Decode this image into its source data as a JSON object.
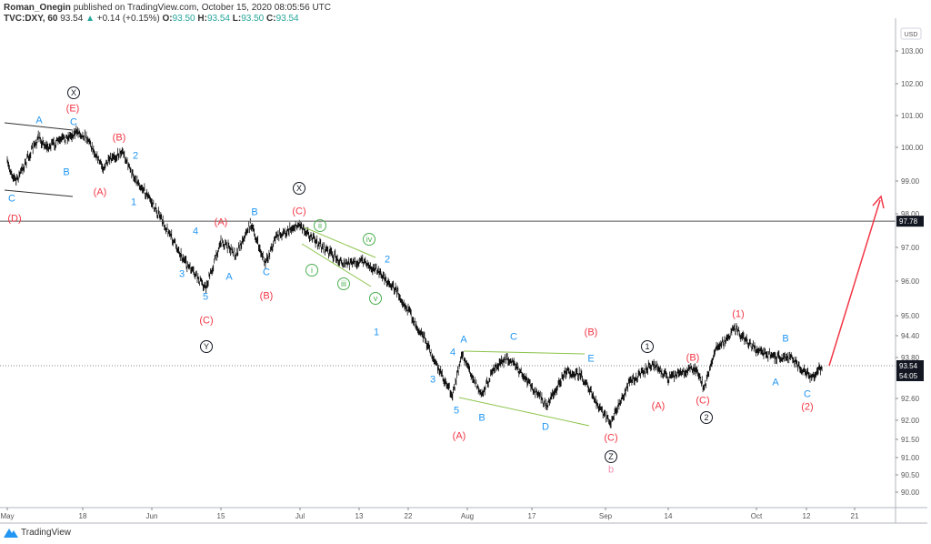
{
  "header": {
    "author": "Roman_Onegin",
    "published": "published on TradingView.com, October 15, 2020 08:05:56 UTC",
    "symbol": "TVC:DXY, 60",
    "last": "93.54",
    "change": "+0.14 (+0.15%)",
    "o_label": "O:",
    "o": "93.50",
    "h_label": "H:",
    "h": "93.54",
    "l_label": "L:",
    "l": "93.50",
    "c_label": "C:",
    "c": "93.54"
  },
  "footer": {
    "brand": "TradingView"
  },
  "colors": {
    "red": "#f23645",
    "blue": "#2196f3",
    "green": "#4caf50",
    "black": "#131722",
    "pink": "#f48fb1",
    "up": "#26a69a"
  },
  "chart_data": {
    "type": "line",
    "title": "",
    "currency": "USD",
    "y_ticks": [
      "103.00",
      "102.00",
      "101.00",
      "100.00",
      "99.00",
      "98.00",
      "97.00",
      "96.00",
      "95.00",
      "94.40",
      "93.80",
      "92.60",
      "92.00",
      "91.50",
      "91.00",
      "90.50",
      "90.00"
    ],
    "x_ticks": [
      "May",
      "18",
      "Jun",
      "15",
      "Jul",
      "13",
      "22",
      "Aug",
      "17",
      "Sep",
      "14",
      "Oct",
      "12",
      "21"
    ],
    "price_labels": {
      "horizontal_line": "97.78",
      "last": "93.54",
      "countdown": "54:05"
    },
    "series": [
      {
        "points": [
          [
            "05-01",
            99.5
          ],
          [
            "05-03",
            99.0
          ],
          [
            "05-08",
            100.3
          ],
          [
            "05-10",
            100.0
          ],
          [
            "05-17",
            100.5
          ],
          [
            "05-19",
            100.3
          ],
          [
            "05-22",
            99.4
          ],
          [
            "05-26",
            99.9
          ],
          [
            "05-28",
            99.2
          ],
          [
            "05-31",
            98.6
          ],
          [
            "06-05",
            97.3
          ],
          [
            "06-08",
            96.5
          ],
          [
            "06-12",
            95.8
          ],
          [
            "06-15",
            97.2
          ],
          [
            "06-18",
            96.8
          ],
          [
            "06-21",
            97.7
          ],
          [
            "06-24",
            96.5
          ],
          [
            "06-26",
            97.3
          ],
          [
            "07-01",
            97.7
          ],
          [
            "07-04",
            97.2
          ],
          [
            "07-10",
            96.5
          ],
          [
            "07-14",
            96.6
          ],
          [
            "07-17",
            96.2
          ],
          [
            "07-20",
            95.7
          ],
          [
            "07-25",
            94.4
          ],
          [
            "07-28",
            93.5
          ],
          [
            "07-31",
            92.7
          ],
          [
            "08-02",
            93.9
          ],
          [
            "08-06",
            92.7
          ],
          [
            "08-09",
            93.5
          ],
          [
            "08-12",
            93.8
          ],
          [
            "08-16",
            93.1
          ],
          [
            "08-20",
            92.4
          ],
          [
            "08-24",
            93.4
          ],
          [
            "08-27",
            93.3
          ],
          [
            "08-30",
            92.5
          ],
          [
            "09-02",
            91.9
          ],
          [
            "09-06",
            93.1
          ],
          [
            "09-11",
            93.6
          ],
          [
            "09-14",
            93.2
          ],
          [
            "09-19",
            93.5
          ],
          [
            "09-21",
            92.9
          ],
          [
            "09-23",
            94.0
          ],
          [
            "09-27",
            94.6
          ],
          [
            "10-01",
            94.0
          ],
          [
            "10-05",
            93.8
          ],
          [
            "10-08",
            93.85
          ],
          [
            "10-13",
            93.2
          ],
          [
            "10-15",
            93.54
          ]
        ]
      }
    ],
    "annotations": [
      {
        "text": "X",
        "color": "black",
        "circled": true
      },
      {
        "text": "(E)",
        "color": "red"
      },
      {
        "text": "A",
        "color": "blue"
      },
      {
        "text": "C",
        "color": "blue"
      },
      {
        "text": "B",
        "color": "blue"
      },
      {
        "text": "(A)",
        "color": "red"
      },
      {
        "text": "(B)",
        "color": "red"
      },
      {
        "text": "2",
        "color": "blue"
      },
      {
        "text": "1",
        "color": "blue"
      },
      {
        "text": "C",
        "color": "blue"
      },
      {
        "text": "(D)",
        "color": "red"
      },
      {
        "text": "X",
        "color": "black",
        "circled": true
      },
      {
        "text": "(C)",
        "color": "red"
      },
      {
        "text": "(A)",
        "color": "red"
      },
      {
        "text": "B",
        "color": "blue"
      },
      {
        "text": "4",
        "color": "blue"
      },
      {
        "text": "3",
        "color": "blue"
      },
      {
        "text": "A",
        "color": "blue"
      },
      {
        "text": "C",
        "color": "blue"
      },
      {
        "text": "5",
        "color": "blue"
      },
      {
        "text": "(B)",
        "color": "red"
      },
      {
        "text": "(C)",
        "color": "red"
      },
      {
        "text": "Y",
        "color": "black",
        "circled": true
      },
      {
        "text": "ii",
        "color": "green",
        "circled": true
      },
      {
        "text": "iv",
        "color": "green",
        "circled": true
      },
      {
        "text": "i",
        "color": "green",
        "circled": true
      },
      {
        "text": "iii",
        "color": "green",
        "circled": true
      },
      {
        "text": "v",
        "color": "green",
        "circled": true
      },
      {
        "text": "2",
        "color": "blue"
      },
      {
        "text": "1",
        "color": "blue"
      },
      {
        "text": "(B)",
        "color": "red"
      },
      {
        "text": "A",
        "color": "blue"
      },
      {
        "text": "C",
        "color": "blue"
      },
      {
        "text": "4",
        "color": "blue"
      },
      {
        "text": "E",
        "color": "blue"
      },
      {
        "text": "3",
        "color": "blue"
      },
      {
        "text": "5",
        "color": "blue"
      },
      {
        "text": "B",
        "color": "blue"
      },
      {
        "text": "D",
        "color": "blue"
      },
      {
        "text": "(A)",
        "color": "red"
      },
      {
        "text": "(C)",
        "color": "red"
      },
      {
        "text": "Z",
        "color": "black",
        "circled": true
      },
      {
        "text": "b",
        "color": "pink"
      },
      {
        "text": "1",
        "color": "black",
        "circled": true
      },
      {
        "text": "(B)",
        "color": "red"
      },
      {
        "text": "(A)",
        "color": "red"
      },
      {
        "text": "(C)",
        "color": "red"
      },
      {
        "text": "2",
        "color": "black",
        "circled": true
      },
      {
        "text": "(1)",
        "color": "red"
      },
      {
        "text": "B",
        "color": "blue"
      },
      {
        "text": "A",
        "color": "blue"
      },
      {
        "text": "C",
        "color": "blue"
      },
      {
        "text": "(2)",
        "color": "red"
      }
    ]
  }
}
